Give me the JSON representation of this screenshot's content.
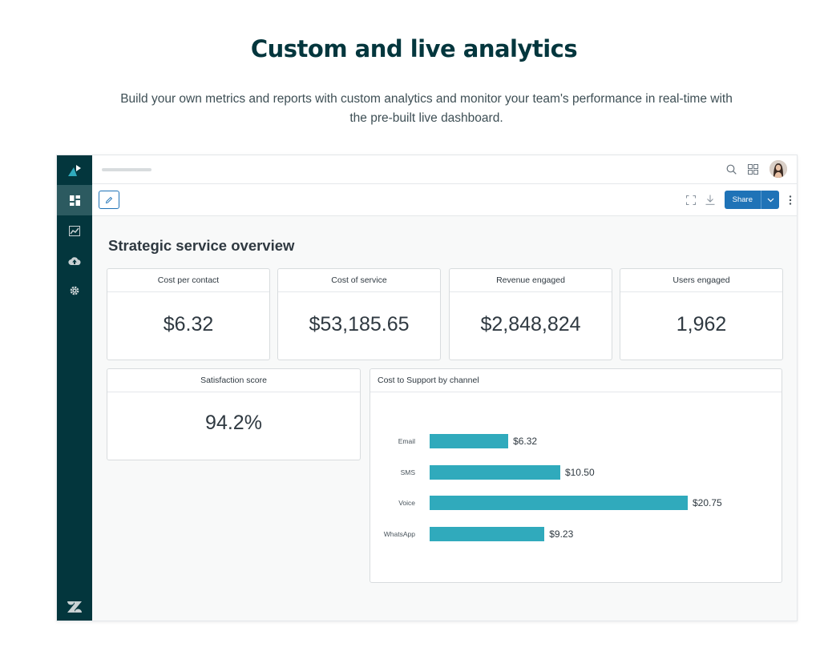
{
  "hero": {
    "title": "Custom and live analytics",
    "subtitle": "Build your own metrics and reports with custom analytics and monitor your team's performance in real-time with the pre-built live dashboard."
  },
  "toolbar": {
    "share_label": "Share"
  },
  "dashboard": {
    "title": "Strategic service overview",
    "kpis": [
      {
        "label": "Cost per contact",
        "value": "$6.32"
      },
      {
        "label": "Cost of service",
        "value": "$53,185.65"
      },
      {
        "label": "Revenue engaged",
        "value": "$2,848,824"
      },
      {
        "label": "Users engaged",
        "value": "1,962"
      }
    ],
    "satisfaction": {
      "label": "Satisfaction score",
      "value": "94.2%"
    }
  },
  "chart_data": {
    "type": "bar",
    "orientation": "horizontal",
    "title": "Cost to Support by channel",
    "categories": [
      "Email",
      "SMS",
      "Voice",
      "WhatsApp"
    ],
    "values": [
      6.32,
      10.5,
      20.75,
      9.23
    ],
    "value_labels": [
      "$6.32",
      "$10.50",
      "$20.75",
      "$9.23"
    ],
    "xlim": [
      0,
      20.75
    ],
    "grid": false,
    "legend": "none",
    "bar_color": "#30aabc"
  },
  "colors": {
    "sidebar": "#03363d",
    "accent": "#1f73b7",
    "bar": "#30aabc",
    "headline": "#03363d"
  },
  "icons": {
    "sidebar": [
      "logo-icon",
      "dashboard-icon",
      "reports-icon",
      "upload-icon",
      "settings-icon",
      "zendesk-logo-icon"
    ],
    "topbar": [
      "search-icon",
      "apps-grid-icon",
      "avatar"
    ],
    "toolbar": [
      "pencil-icon",
      "fullscreen-icon",
      "download-icon",
      "share-caret-icon",
      "more-vertical-icon"
    ]
  }
}
